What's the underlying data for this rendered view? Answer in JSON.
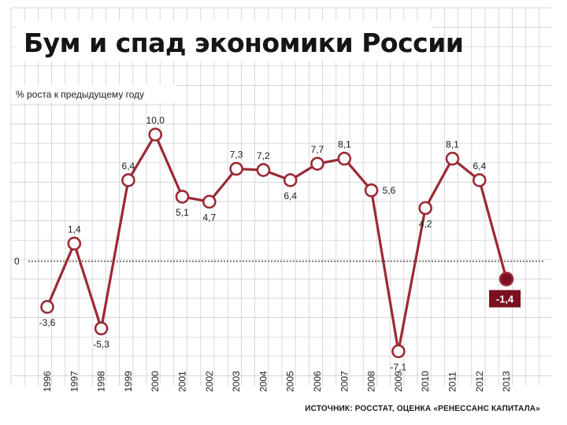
{
  "chart_data": {
    "type": "line",
    "title": "Бум и спад экономики России",
    "ylabel": "% роста к предыдущему году",
    "xlabel": "",
    "categories": [
      "1996",
      "1997",
      "1998",
      "1999",
      "2000",
      "2001",
      "2002",
      "2003",
      "2004",
      "2005",
      "2006",
      "2007",
      "2008",
      "2009",
      "2010",
      "2011",
      "2012",
      "2013"
    ],
    "series": [
      {
        "values": [
          -3.6,
          1.4,
          -5.3,
          6.4,
          10.0,
          5.1,
          4.7,
          7.3,
          7.2,
          6.4,
          7.7,
          8.1,
          5.6,
          -7.1,
          4.2,
          8.1,
          6.4,
          -1.4
        ],
        "labels": [
          "-3,6",
          "1,4",
          "-5,3",
          "6,4",
          "10,0",
          "5,1",
          "4,7",
          "7,3",
          "7,2",
          "6,4",
          "7,7",
          "8,1",
          "5,6",
          "-7,1",
          "4,2",
          "8,1",
          "6,4",
          "-1,4"
        ],
        "label_pos": [
          "below",
          "above",
          "below",
          "above",
          "above",
          "below",
          "below",
          "above",
          "above",
          "below",
          "above",
          "above",
          "right",
          "below",
          "below",
          "above",
          "above",
          "below"
        ],
        "highlight_last": true
      }
    ],
    "zero_label": "0",
    "ylim": [
      -8.5,
      11.5
    ],
    "grid": true,
    "source": "ИСТОЧНИК: РОССТАТ, ОЦЕНКА «РЕНЕССАНС КАПИТАЛА»",
    "colors": {
      "line": "#9a2a34",
      "highlight_fill": "#7a1020",
      "grid": "#c9c9c9",
      "zero": "#333333"
    }
  }
}
